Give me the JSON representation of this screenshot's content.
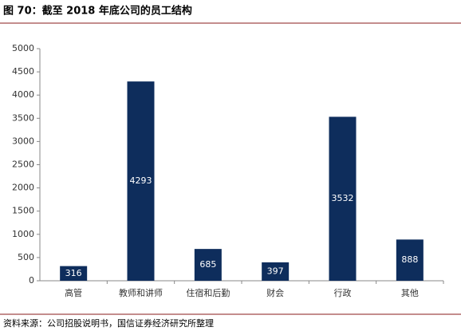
{
  "chart_data": {
    "type": "bar",
    "title": "图 70：截至 2018 年底公司的员工结构",
    "categories": [
      "高管",
      "教师和讲师",
      "住宿和后勤",
      "财会",
      "行政",
      "其他"
    ],
    "values": [
      316,
      4293,
      685,
      397,
      3532,
      888
    ],
    "color": "#0e2d5c",
    "ylim": [
      0,
      5000
    ],
    "yticks": [
      0,
      500,
      1000,
      1500,
      2000,
      2500,
      3000,
      3500,
      4000,
      4500,
      5000
    ],
    "source": "资料来源：公司招股说明书，国信证券经济研究所整理"
  }
}
